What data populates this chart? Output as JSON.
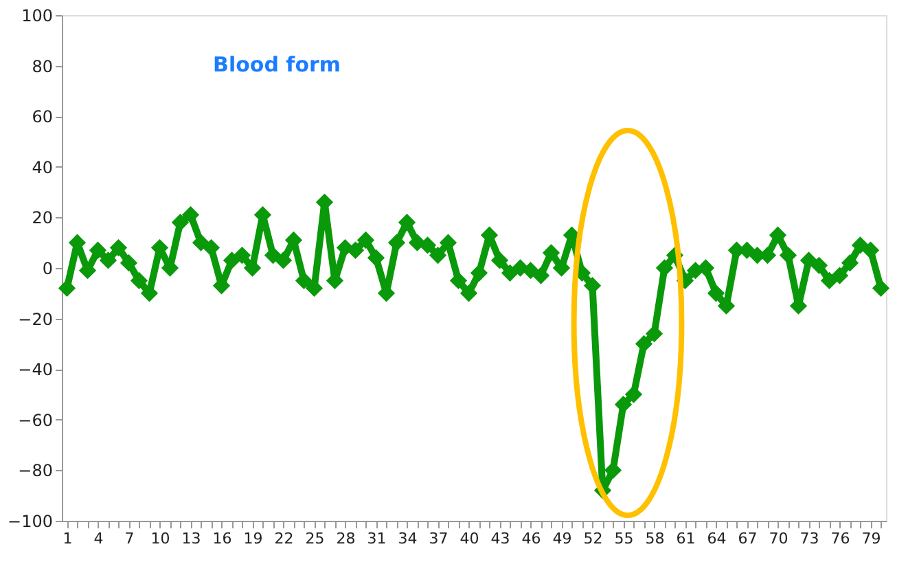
{
  "chart_data": {
    "type": "line",
    "title": "Blood form",
    "categories": [
      "1",
      null,
      null,
      "4",
      null,
      null,
      "7",
      null,
      null,
      "10",
      null,
      null,
      "13",
      null,
      null,
      "16",
      null,
      null,
      "19",
      null,
      null,
      "22",
      null,
      null,
      "25",
      null,
      null,
      "28",
      null,
      null,
      "31",
      null,
      null,
      "34",
      null,
      null,
      "37",
      null,
      null,
      "40",
      null,
      null,
      "43",
      null,
      null,
      "46",
      null,
      null,
      "49",
      null,
      null,
      "52",
      null,
      null,
      "55",
      null,
      null,
      "58",
      null,
      null,
      "61",
      null,
      null,
      "64",
      null,
      null,
      "67",
      null,
      null,
      "70",
      null,
      null,
      "73",
      null,
      null,
      "76",
      null,
      null,
      "79",
      null
    ],
    "series": [
      {
        "color": "#0a990a",
        "values": [
          -8,
          10,
          -1,
          7,
          3,
          8,
          2,
          -5,
          -10,
          8,
          0,
          18,
          21,
          10,
          8,
          -7,
          3,
          5,
          0,
          21,
          5,
          3,
          11,
          -5,
          -8,
          26,
          -5,
          8,
          7,
          11,
          4,
          -10,
          10,
          18,
          10,
          9,
          5,
          10,
          -5,
          -10,
          -2,
          13,
          3,
          -2,
          0,
          -1,
          -3,
          6,
          0,
          13,
          -2,
          -7,
          -88,
          -80,
          -54,
          -50,
          -30,
          -26,
          0,
          5,
          -5,
          -1,
          0,
          -10,
          -15,
          7,
          7,
          5,
          5,
          13,
          5,
          -15,
          3,
          1,
          -5,
          -3,
          2,
          9,
          7,
          -8
        ]
      }
    ],
    "ylim": [
      -100,
      100
    ],
    "yticks": [
      -100,
      -80,
      -60,
      -40,
      -20,
      0,
      20,
      40,
      60,
      80,
      100
    ],
    "grid": false,
    "marker": "diamond",
    "line_style": "solid"
  }
}
